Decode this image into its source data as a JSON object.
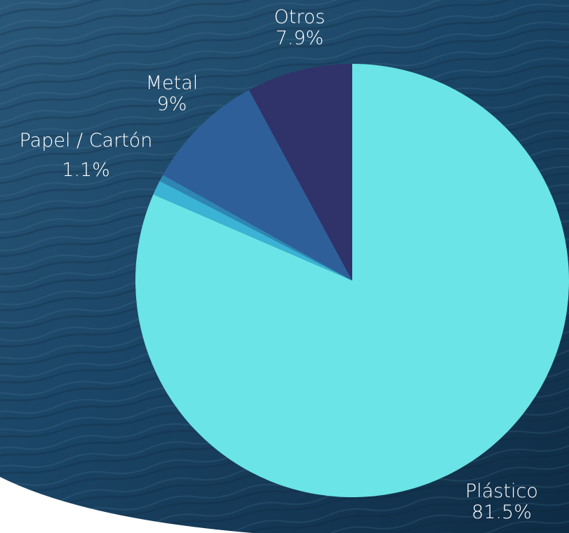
{
  "chart_data": {
    "type": "pie",
    "title": "",
    "slices": [
      {
        "label": "Plástico",
        "value": 81.5,
        "value_label": "81.5%",
        "color": "#6ae4e6"
      },
      {
        "label": "Papel / Cartón",
        "value": 1.1,
        "value_label": "1.1%",
        "color": "#3bb3d4"
      },
      {
        "label": "",
        "value": 0.5,
        "value_label": "",
        "color": "#2f86b3"
      },
      {
        "label": "Metal",
        "value": 9.0,
        "value_label": "9%",
        "color": "#2e5f98"
      },
      {
        "label": "Otros",
        "value": 7.9,
        "value_label": "7.9%",
        "color": "#2f3369"
      }
    ],
    "start_angle": "12 o'clock",
    "direction": "clockwise",
    "legend": "none"
  },
  "background": {
    "description_color_dark": "#0f2c44",
    "description_color_light": "#2a5878"
  }
}
